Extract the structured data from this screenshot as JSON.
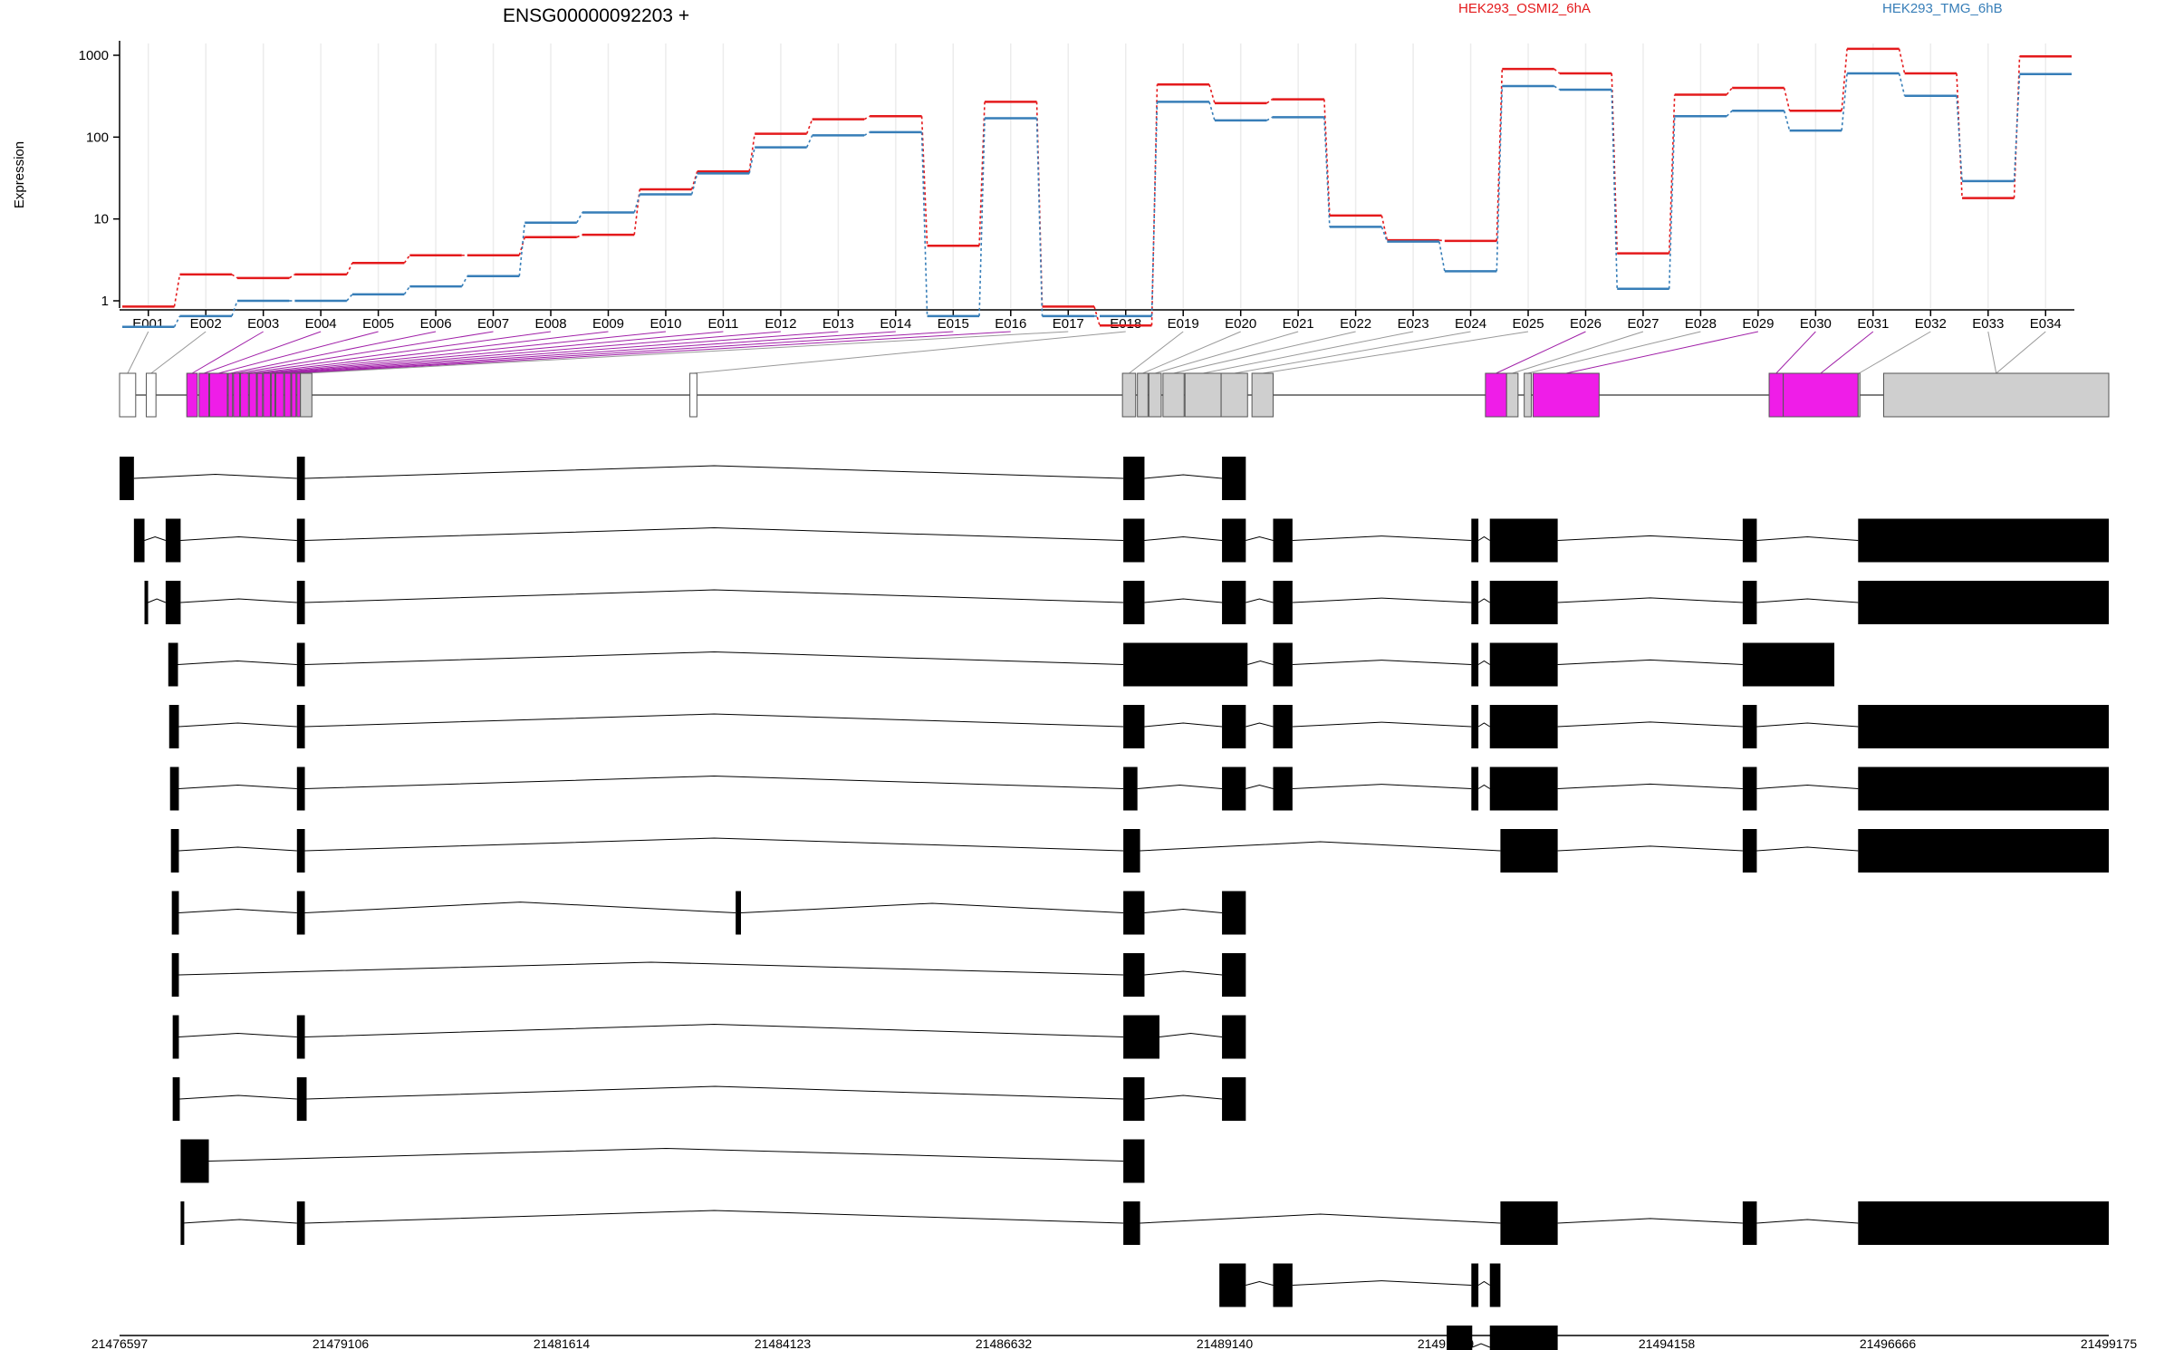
{
  "chart_data": {
    "type": "line",
    "title": "ENSG00000092203 +",
    "ylabel": "Expression",
    "yscale": "log",
    "y_ticks": [
      1,
      10,
      100,
      1000
    ],
    "legend_position": "top",
    "categories": [
      "E001",
      "E002",
      "E003",
      "E004",
      "E005",
      "E006",
      "E007",
      "E008",
      "E009",
      "E010",
      "E011",
      "E012",
      "E013",
      "E014",
      "E015",
      "E016",
      "E017",
      "E018",
      "E019",
      "E020",
      "E021",
      "E022",
      "E023",
      "E024",
      "E025",
      "E026",
      "E027",
      "E028",
      "E029",
      "E030",
      "E031",
      "E032",
      "E033",
      "E034"
    ],
    "series": [
      {
        "name": "HEK293_OSMI2_6hA",
        "color": "#e41a1c",
        "values": [
          0.85,
          2.1,
          1.9,
          2.1,
          2.9,
          3.6,
          3.6,
          6.0,
          6.4,
          23,
          38,
          110,
          165,
          180,
          4.7,
          270,
          0.85,
          0.5,
          440,
          260,
          290,
          11,
          5.5,
          5.4,
          680,
          600,
          3.8,
          330,
          400,
          210,
          1200,
          600,
          18,
          970
        ]
      },
      {
        "name": "HEK293_TMG_6hB",
        "color": "#377eb8",
        "values": [
          0.48,
          0.65,
          1.0,
          1.0,
          1.2,
          1.5,
          2.0,
          9.0,
          12,
          20,
          36,
          75,
          105,
          115,
          0.65,
          170,
          0.65,
          0.65,
          270,
          160,
          175,
          8,
          5.3,
          2.3,
          420,
          380,
          1.4,
          180,
          210,
          120,
          600,
          320,
          29,
          590
        ]
      }
    ],
    "exon_bins": [
      [
        21476597,
        21476780
      ],
      [
        21476900,
        21477010
      ],
      [
        21477360,
        21477480
      ],
      [
        21477500,
        21477610
      ],
      [
        21477620,
        21477820
      ],
      [
        21477830,
        21477880
      ],
      [
        21477890,
        21477960
      ],
      [
        21477970,
        21478060
      ],
      [
        21478070,
        21478150
      ],
      [
        21478160,
        21478220
      ],
      [
        21478230,
        21478310
      ],
      [
        21478320,
        21478360
      ],
      [
        21478370,
        21478460
      ],
      [
        21478470,
        21478540
      ],
      [
        21478550,
        21478600
      ],
      [
        21478610,
        21478650
      ],
      [
        21478650,
        21478780
      ],
      [
        21483070,
        21483150
      ],
      [
        21487980,
        21488130
      ],
      [
        21488150,
        21488270
      ],
      [
        21488280,
        21488420
      ],
      [
        21488440,
        21488680
      ],
      [
        21488690,
        21489100
      ],
      [
        21489100,
        21489400
      ],
      [
        21489450,
        21489690
      ],
      [
        21492100,
        21492340
      ],
      [
        21492340,
        21492470
      ],
      [
        21492540,
        21492620
      ],
      [
        21492640,
        21493390
      ],
      [
        21495320,
        21495480
      ],
      [
        21495480,
        21496330
      ],
      [
        21496330,
        21496350
      ],
      [
        21496620,
        21499175
      ],
      [
        21496620,
        21499175
      ]
    ],
    "highlighted_bins": [
      2,
      3,
      4,
      5,
      6,
      7,
      8,
      9,
      10,
      11,
      12,
      13,
      14,
      15,
      25,
      28,
      29,
      30
    ],
    "transcripts": [
      [
        [
          21476597,
          21476760
        ],
        [
          21478610,
          21478700
        ],
        [
          21487990,
          21488230
        ],
        [
          21489110,
          21489380
        ]
      ],
      [
        [
          21476760,
          21476880
        ],
        [
          21477120,
          21477290
        ],
        [
          21478610,
          21478700
        ],
        [
          21487990,
          21488230
        ],
        [
          21489110,
          21489380
        ],
        [
          21489690,
          21489910
        ],
        [
          21491940,
          21492020
        ],
        [
          21492150,
          21492920
        ],
        [
          21495020,
          21495180
        ],
        [
          21496330,
          21499175
        ]
      ],
      [
        [
          21476880,
          21476920
        ],
        [
          21477120,
          21477290
        ],
        [
          21478610,
          21478700
        ],
        [
          21487990,
          21488230
        ],
        [
          21489110,
          21489380
        ],
        [
          21489690,
          21489910
        ],
        [
          21491940,
          21492020
        ],
        [
          21492150,
          21492920
        ],
        [
          21495020,
          21495180
        ],
        [
          21496330,
          21499175
        ]
      ],
      [
        [
          21477150,
          21477260
        ],
        [
          21478610,
          21478700
        ],
        [
          21487990,
          21489400
        ],
        [
          21489690,
          21489910
        ],
        [
          21491940,
          21492020
        ],
        [
          21492150,
          21492920
        ],
        [
          21495020,
          21496060
        ]
      ],
      [
        [
          21477160,
          21477270
        ],
        [
          21478610,
          21478700
        ],
        [
          21487990,
          21488230
        ],
        [
          21489110,
          21489380
        ],
        [
          21489690,
          21489910
        ],
        [
          21491940,
          21492020
        ],
        [
          21492150,
          21492920
        ],
        [
          21495020,
          21495180
        ],
        [
          21496330,
          21499175
        ]
      ],
      [
        [
          21477170,
          21477270
        ],
        [
          21478610,
          21478700
        ],
        [
          21487990,
          21488150
        ],
        [
          21489110,
          21489380
        ],
        [
          21489690,
          21489910
        ],
        [
          21491940,
          21492020
        ],
        [
          21492150,
          21492920
        ],
        [
          21495020,
          21495180
        ],
        [
          21496330,
          21499175
        ]
      ],
      [
        [
          21477180,
          21477270
        ],
        [
          21478610,
          21478700
        ],
        [
          21487990,
          21488180
        ],
        [
          21492270,
          21492920
        ],
        [
          21495020,
          21495180
        ],
        [
          21496330,
          21499175
        ]
      ],
      [
        [
          21477190,
          21477270
        ],
        [
          21478610,
          21478700
        ],
        [
          21483590,
          21483650
        ],
        [
          21487990,
          21488230
        ],
        [
          21489110,
          21489380
        ]
      ],
      [
        [
          21477190,
          21477270
        ],
        [
          21487990,
          21488230
        ],
        [
          21489110,
          21489380
        ]
      ],
      [
        [
          21477200,
          21477270
        ],
        [
          21478610,
          21478700
        ],
        [
          21487990,
          21488400
        ],
        [
          21489110,
          21489380
        ]
      ],
      [
        [
          21477200,
          21477280
        ],
        [
          21478610,
          21478720
        ],
        [
          21487990,
          21488230
        ],
        [
          21489110,
          21489380
        ]
      ],
      [
        [
          21477290,
          21477610
        ],
        [
          21487990,
          21488230
        ]
      ],
      [
        [
          21477290,
          21477310
        ],
        [
          21478610,
          21478700
        ],
        [
          21487990,
          21488180
        ],
        [
          21492270,
          21492920
        ],
        [
          21495020,
          21495180
        ],
        [
          21496330,
          21499175
        ]
      ],
      [
        [
          21489080,
          21489380
        ],
        [
          21489690,
          21489910
        ],
        [
          21491940,
          21492020
        ],
        [
          21492150,
          21492270
        ]
      ],
      [
        [
          21491660,
          21491950
        ],
        [
          21492150,
          21492920
        ]
      ]
    ],
    "xlim": [
      21476597,
      21499175
    ],
    "x_ticks": [
      21476597,
      21479106,
      21481614,
      21484123,
      21486632,
      21489140,
      21491649,
      21494158,
      21496666,
      21499175
    ],
    "grid": true
  }
}
